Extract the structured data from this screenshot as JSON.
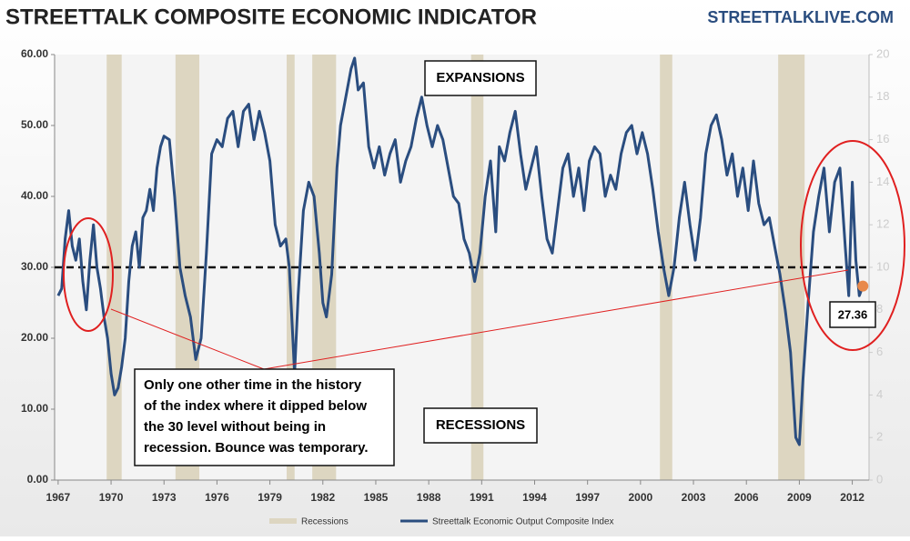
{
  "chart_data": {
    "type": "line",
    "title": "STREETTALK COMPOSITE ECONOMIC INDICATOR",
    "source": "STREETTALKLIVE.COM",
    "xlim": [
      1966.8,
      2012.95
    ],
    "xticks": [
      1967,
      1970,
      1973,
      1976,
      1979,
      1982,
      1985,
      1988,
      1991,
      1994,
      1997,
      2000,
      2003,
      2006,
      2009,
      2012
    ],
    "ylim": [
      0,
      60
    ],
    "yticks": [
      {
        "value": 0,
        "label": "0.00"
      },
      {
        "value": 10,
        "label": "10.00"
      },
      {
        "value": 20,
        "label": "20.00"
      },
      {
        "value": 30,
        "label": "30.00"
      },
      {
        "value": 40,
        "label": "40.00"
      },
      {
        "value": 50,
        "label": "50.00"
      },
      {
        "value": 60,
        "label": "60.00"
      }
    ],
    "y2lim": [
      0,
      20
    ],
    "y2ticks": [
      0,
      2,
      4,
      6,
      8,
      10,
      12,
      14,
      16,
      18,
      20
    ],
    "reference_line": 30,
    "recessions_name": "Recessions",
    "recessions_color": "#ddd6c1",
    "recessions": [
      [
        1969.75,
        1970.6
      ],
      [
        1973.65,
        1975.0
      ],
      [
        1979.95,
        1980.4
      ],
      [
        1981.4,
        1982.75
      ],
      [
        1990.4,
        1991.1
      ],
      [
        2001.1,
        2001.8
      ],
      [
        2007.8,
        2009.3
      ]
    ],
    "series": [
      {
        "name": "Streettalk Economic Output Composite Index",
        "color": "#2a4d7f",
        "x": [
          1967.0,
          1967.2,
          1967.4,
          1967.6,
          1967.8,
          1968.0,
          1968.2,
          1968.4,
          1968.6,
          1968.8,
          1969.0,
          1969.2,
          1969.4,
          1969.6,
          1969.8,
          1970.0,
          1970.2,
          1970.4,
          1970.6,
          1970.8,
          1971.0,
          1971.2,
          1971.4,
          1971.6,
          1971.8,
          1972.0,
          1972.2,
          1972.4,
          1972.6,
          1972.8,
          1973.0,
          1973.3,
          1973.6,
          1973.9,
          1974.2,
          1974.5,
          1974.8,
          1975.1,
          1975.4,
          1975.7,
          1976.0,
          1976.3,
          1976.6,
          1976.9,
          1977.2,
          1977.5,
          1977.8,
          1978.1,
          1978.4,
          1978.7,
          1979.0,
          1979.3,
          1979.6,
          1979.9,
          1980.1,
          1980.3,
          1980.4,
          1980.6,
          1980.9,
          1981.2,
          1981.5,
          1981.8,
          1982.0,
          1982.2,
          1982.5,
          1982.8,
          1983.0,
          1983.3,
          1983.6,
          1983.8,
          1984.0,
          1984.3,
          1984.6,
          1984.9,
          1985.2,
          1985.5,
          1985.8,
          1986.1,
          1986.4,
          1986.7,
          1987.0,
          1987.3,
          1987.6,
          1987.9,
          1988.2,
          1988.5,
          1988.8,
          1989.1,
          1989.4,
          1989.7,
          1990.0,
          1990.3,
          1990.6,
          1990.9,
          1991.2,
          1991.5,
          1991.8,
          1992.0,
          1992.3,
          1992.6,
          1992.9,
          1993.2,
          1993.5,
          1993.8,
          1994.1,
          1994.4,
          1994.7,
          1995.0,
          1995.3,
          1995.6,
          1995.9,
          1996.2,
          1996.5,
          1996.8,
          1997.1,
          1997.4,
          1997.7,
          1998.0,
          1998.3,
          1998.6,
          1998.9,
          1999.2,
          1999.5,
          1999.8,
          2000.1,
          2000.4,
          2000.7,
          2001.0,
          2001.3,
          2001.6,
          2001.9,
          2002.2,
          2002.5,
          2002.8,
          2003.1,
          2003.4,
          2003.7,
          2004.0,
          2004.3,
          2004.6,
          2004.9,
          2005.2,
          2005.5,
          2005.8,
          2006.1,
          2006.4,
          2006.7,
          2007.0,
          2007.3,
          2007.6,
          2007.9,
          2008.2,
          2008.5,
          2008.8,
          2009.0,
          2009.2,
          2009.5,
          2009.8,
          2010.1,
          2010.4,
          2010.7,
          2011.0,
          2011.3,
          2011.6,
          2011.8,
          2012.0,
          2012.2,
          2012.4,
          2012.6
        ],
        "values": [
          26,
          27,
          34,
          38,
          33,
          31,
          34,
          28,
          24,
          31,
          36,
          30,
          27,
          23,
          20,
          15,
          12,
          13,
          16,
          20,
          28,
          33,
          35,
          30,
          37,
          38,
          41,
          38,
          44,
          47,
          48.5,
          48,
          40,
          30,
          26,
          23,
          17,
          20,
          32,
          46,
          48,
          47,
          51,
          52,
          47,
          52,
          53,
          48,
          52,
          49,
          45,
          36,
          33,
          34,
          30,
          20,
          15,
          26,
          38,
          42,
          40,
          32,
          25,
          23,
          29,
          44,
          50,
          54,
          58,
          59.5,
          55,
          56,
          47,
          44,
          47,
          43,
          46,
          48,
          42,
          45,
          47,
          51,
          54,
          50,
          47,
          50,
          48,
          44,
          40,
          39,
          34,
          32,
          28,
          32,
          40,
          45,
          35,
          47,
          45,
          49,
          52,
          46,
          41,
          44,
          47,
          40,
          34,
          32,
          38,
          44,
          46,
          40,
          44,
          38,
          45,
          47,
          46,
          40,
          43,
          41,
          46,
          49,
          50,
          46,
          49,
          46,
          41,
          35,
          30,
          26,
          30,
          37,
          42,
          36,
          31,
          37,
          46,
          50,
          51.5,
          48,
          43,
          46,
          40,
          44,
          38,
          45,
          39,
          36,
          37,
          33,
          29,
          24,
          18,
          6,
          5,
          14,
          25,
          35,
          40,
          44,
          35,
          42,
          44,
          33,
          26,
          42,
          31,
          26,
          27.36
        ]
      }
    ],
    "last_point": {
      "x": 2012.6,
      "value": 27.36,
      "label": "27.36",
      "color": "#e8894a"
    },
    "annotations": {
      "expansions": "EXPANSIONS",
      "recessions": "RECESSIONS",
      "note": [
        "Only one other time in the history",
        "of the index where it dipped below",
        "the 30 level without being in",
        "recession.  Bounce was temporary."
      ]
    }
  }
}
